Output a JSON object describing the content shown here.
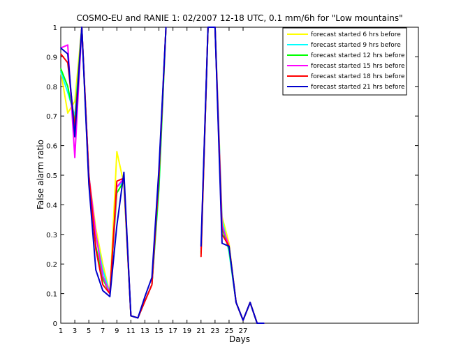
{
  "chart_data": {
    "type": "line",
    "title": "COSMO-EU and RANIE 1: 02/2007 12-18 UTC, 0.1 mm/6h for \"Low mountains\"",
    "xlabel": "Days",
    "ylabel": "False alarm ratio",
    "xlim": [
      1,
      52
    ],
    "ylim": [
      0,
      1
    ],
    "xticks": [
      1,
      3,
      5,
      7,
      9,
      11,
      13,
      15,
      17,
      19,
      21,
      23,
      25,
      27
    ],
    "yticks": [
      0,
      0.1,
      0.2,
      0.3,
      0.4,
      0.5,
      0.6,
      0.7,
      0.8,
      0.9,
      1
    ],
    "legend_position": "top-right",
    "series": [
      {
        "name": "forecast started 6 hrs before",
        "color": "#ffff00",
        "points": [
          [
            1,
            0.85
          ],
          [
            2,
            0.71
          ],
          [
            3,
            0.75
          ],
          [
            4,
            1.0
          ],
          [
            5,
            0.5
          ],
          [
            6,
            0.32
          ],
          [
            7,
            0.2
          ],
          [
            8,
            0.1
          ],
          [
            9,
            0.58
          ],
          [
            10,
            0.47
          ],
          [
            11,
            0.025
          ],
          [
            12,
            0.018
          ],
          [
            13,
            0.075
          ],
          [
            14,
            0.13
          ],
          [
            15,
            0.48
          ],
          [
            16,
            1.0
          ],
          [
            21,
            0.24
          ],
          [
            22,
            1.0
          ],
          [
            23,
            1.0
          ],
          [
            24,
            0.36
          ],
          [
            25,
            0.27
          ],
          [
            26,
            0.07
          ],
          [
            27,
            0.01
          ],
          [
            28,
            0.07
          ],
          [
            29,
            0.0
          ],
          [
            30,
            0.0
          ]
        ]
      },
      {
        "name": "forecast started 9 hrs before",
        "color": "#00ffff",
        "points": [
          [
            1,
            0.85
          ],
          [
            2,
            0.78
          ],
          [
            3,
            0.7
          ],
          [
            4,
            1.0
          ],
          [
            5,
            0.5
          ],
          [
            6,
            0.3
          ],
          [
            7,
            0.18
          ],
          [
            8,
            0.1
          ],
          [
            9,
            0.46
          ],
          [
            10,
            0.48
          ],
          [
            11,
            0.025
          ],
          [
            12,
            0.018
          ],
          [
            13,
            0.075
          ],
          [
            14,
            0.13
          ],
          [
            15,
            0.45
          ],
          [
            16,
            1.0
          ],
          [
            21,
            0.24
          ],
          [
            22,
            1.0
          ],
          [
            23,
            1.0
          ],
          [
            24,
            0.35
          ],
          [
            25,
            0.24
          ],
          [
            26,
            0.07
          ],
          [
            27,
            0.01
          ],
          [
            28,
            0.07
          ],
          [
            29,
            0.0
          ],
          [
            30,
            0.0
          ]
        ]
      },
      {
        "name": "forecast started 12 hrs before",
        "color": "#00ff00",
        "points": [
          [
            1,
            0.86
          ],
          [
            2,
            0.8
          ],
          [
            3,
            0.68
          ],
          [
            4,
            1.0
          ],
          [
            5,
            0.48
          ],
          [
            6,
            0.26
          ],
          [
            7,
            0.15
          ],
          [
            8,
            0.1
          ],
          [
            9,
            0.44
          ],
          [
            10,
            0.48
          ],
          [
            11,
            0.025
          ],
          [
            12,
            0.018
          ],
          [
            13,
            0.075
          ],
          [
            14,
            0.13
          ],
          [
            15,
            0.46
          ],
          [
            16,
            1.0
          ],
          [
            21,
            0.235
          ],
          [
            22,
            1.0
          ],
          [
            23,
            1.0
          ],
          [
            24,
            0.32
          ],
          [
            25,
            0.25
          ],
          [
            26,
            0.07
          ],
          [
            27,
            0.01
          ],
          [
            28,
            0.07
          ],
          [
            29,
            0.0
          ],
          [
            30,
            0.0
          ]
        ]
      },
      {
        "name": "forecast started 15 hrs before",
        "color": "#ff00ff",
        "points": [
          [
            1,
            0.93
          ],
          [
            2,
            0.94
          ],
          [
            3,
            0.56
          ],
          [
            4,
            1.0
          ],
          [
            5,
            0.5
          ],
          [
            6,
            0.3
          ],
          [
            7,
            0.16
          ],
          [
            8,
            0.1
          ],
          [
            9,
            0.46
          ],
          [
            10,
            0.49
          ],
          [
            11,
            0.025
          ],
          [
            12,
            0.018
          ],
          [
            13,
            0.075
          ],
          [
            14,
            0.13
          ],
          [
            15,
            0.5
          ],
          [
            16,
            1.0
          ],
          [
            21,
            0.25
          ],
          [
            22,
            1.0
          ],
          [
            23,
            1.0
          ],
          [
            24,
            0.33
          ],
          [
            25,
            0.26
          ],
          [
            26,
            0.07
          ],
          [
            27,
            0.01
          ],
          [
            28,
            0.07
          ],
          [
            29,
            0.0
          ],
          [
            30,
            0.0
          ]
        ]
      },
      {
        "name": "forecast started 18 hrs before",
        "color": "#ff0000",
        "points": [
          [
            1,
            0.91
          ],
          [
            2,
            0.88
          ],
          [
            3,
            0.66
          ],
          [
            4,
            1.0
          ],
          [
            5,
            0.5
          ],
          [
            6,
            0.25
          ],
          [
            7,
            0.13
          ],
          [
            8,
            0.1
          ],
          [
            9,
            0.48
          ],
          [
            10,
            0.49
          ],
          [
            11,
            0.025
          ],
          [
            12,
            0.018
          ],
          [
            13,
            0.075
          ],
          [
            14,
            0.13
          ],
          [
            15,
            0.5
          ],
          [
            16,
            1.0
          ],
          [
            21,
            0.225
          ],
          [
            22,
            1.0
          ],
          [
            23,
            1.0
          ],
          [
            24,
            0.3
          ],
          [
            25,
            0.26
          ],
          [
            26,
            0.07
          ],
          [
            27,
            0.01
          ],
          [
            28,
            0.07
          ],
          [
            29,
            0.0
          ],
          [
            30,
            0.0
          ]
        ]
      },
      {
        "name": "forecast started 21 hrs before",
        "color": "#0000cc",
        "points": [
          [
            1,
            0.93
          ],
          [
            2,
            0.91
          ],
          [
            3,
            0.63
          ],
          [
            4,
            1.0
          ],
          [
            5,
            0.47
          ],
          [
            6,
            0.18
          ],
          [
            7,
            0.11
          ],
          [
            8,
            0.09
          ],
          [
            9,
            0.33
          ],
          [
            10,
            0.51
          ],
          [
            11,
            0.025
          ],
          [
            12,
            0.018
          ],
          [
            13,
            0.09
          ],
          [
            14,
            0.155
          ],
          [
            15,
            0.52
          ],
          [
            16,
            1.0
          ],
          [
            21,
            0.26
          ],
          [
            22,
            1.0
          ],
          [
            23,
            1.0
          ],
          [
            24,
            0.27
          ],
          [
            25,
            0.26
          ],
          [
            26,
            0.07
          ],
          [
            27,
            0.01
          ],
          [
            28,
            0.07
          ],
          [
            29,
            0.0
          ],
          [
            30,
            0.0
          ]
        ]
      }
    ]
  }
}
